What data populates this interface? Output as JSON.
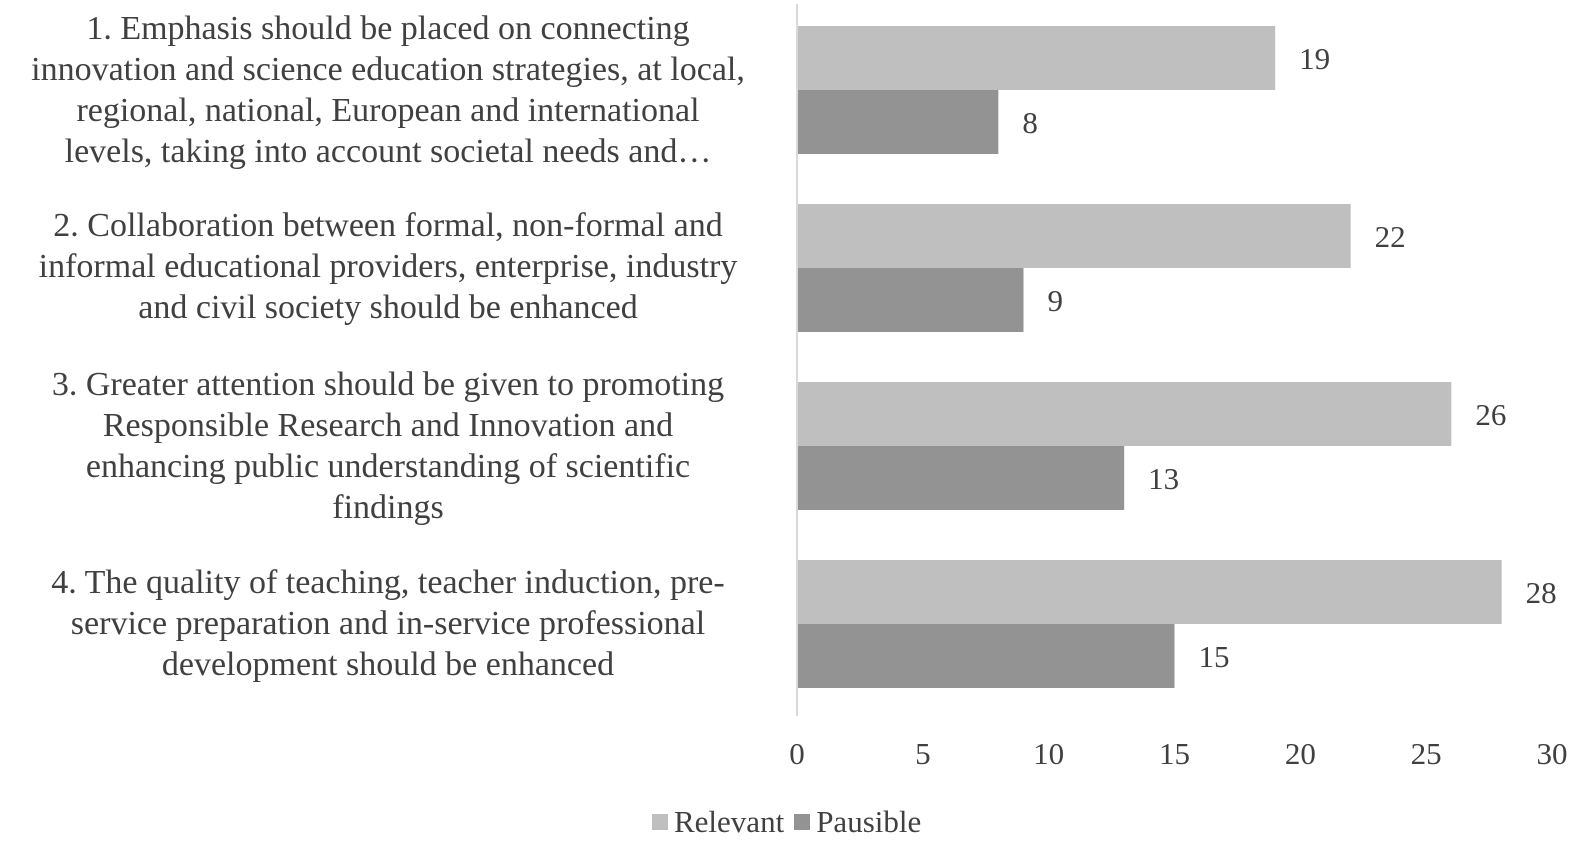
{
  "chart_data": {
    "type": "bar",
    "orientation": "horizontal",
    "categories": [
      "1. Emphasis should be placed on connecting innovation and science education strategies, at local, regional, national, European and international levels, taking into account societal needs and…",
      "2. Collaboration between formal, non-formal and informal educational providers, enterprise, industry and civil society should be enhanced",
      "3. Greater attention should be given to promoting Responsible Research and Innovation and enhancing public understanding of scientific findings",
      "4. The quality of teaching, teacher induction, pre-service preparation and in-service professional development should be enhanced"
    ],
    "series": [
      {
        "name": "Relevant",
        "color": "#bfbfbf",
        "values": [
          19,
          22,
          26,
          28
        ]
      },
      {
        "name": "Pausible",
        "color": "#939393",
        "values": [
          8,
          9,
          13,
          15
        ]
      }
    ],
    "xlim": [
      0,
      30
    ],
    "xticks": [
      "0",
      "5",
      "10",
      "15",
      "20",
      "25",
      "30"
    ],
    "grid": false,
    "data_labels": true,
    "legend_position": "bottom"
  },
  "labels": {
    "cat1": [
      "1. Emphasis should be placed on connecting",
      "innovation and science education strategies, at local,",
      "regional, national, European and international",
      "levels, taking into account societal needs and…"
    ],
    "cat2": [
      "2. Collaboration between formal, non-formal and",
      "informal educational providers, enterprise, industry",
      "and civil society should be enhanced"
    ],
    "cat3": [
      "3. Greater attention should be given to promoting",
      "Responsible Research and Innovation and",
      "enhancing public understanding of scientific",
      "findings"
    ],
    "cat4": [
      "4. The quality of teaching, teacher induction, pre-",
      "service preparation and in-service professional",
      "development should be enhanced"
    ]
  },
  "legend": {
    "relevant": "Relevant",
    "pausible": "Pausible"
  }
}
